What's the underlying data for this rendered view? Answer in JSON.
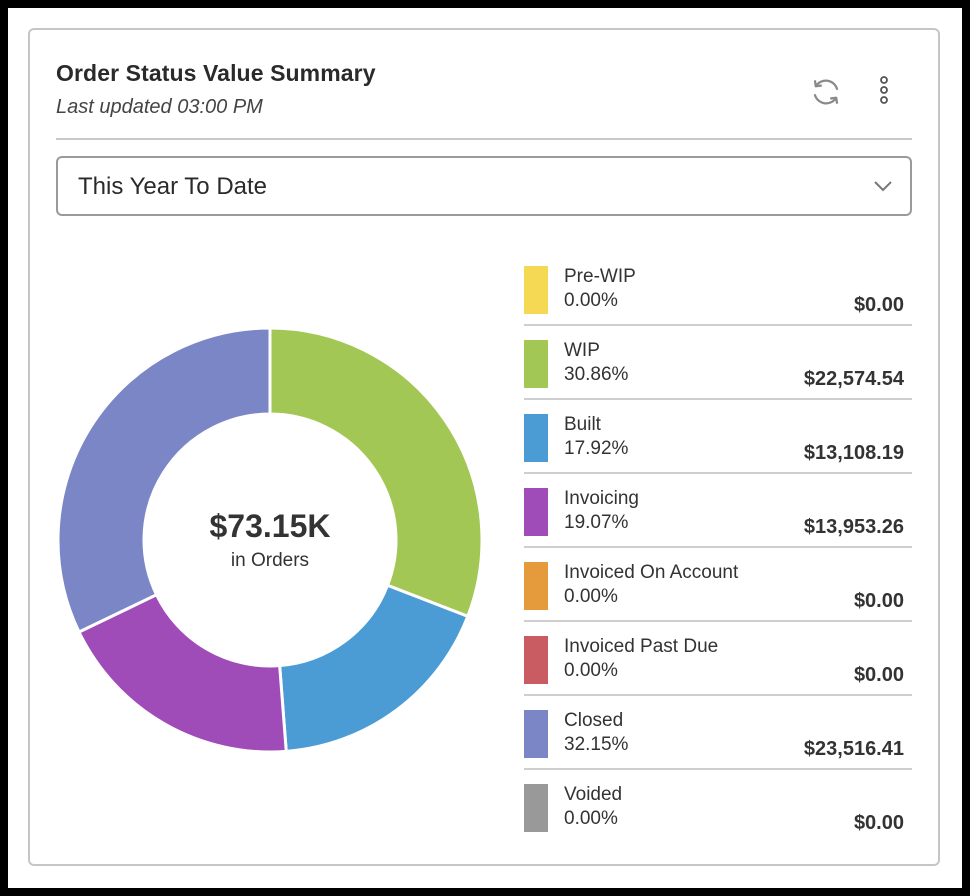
{
  "widget": {
    "title": "Order Status Value Summary",
    "last_updated": "Last updated 03:00 PM",
    "icons": {
      "refresh": "refresh-icon",
      "more": "more-vertical-icon",
      "chevron": "chevron-down-icon"
    }
  },
  "filter": {
    "selected": "This Year To Date"
  },
  "center": {
    "value": "$73.15K",
    "label": "in Orders"
  },
  "chart_data": {
    "type": "pie",
    "variant": "donut",
    "title": "Order Status Value Summary",
    "total_label": "$73.15K",
    "series": [
      {
        "name": "Pre-WIP",
        "percent": 0.0,
        "percent_label": "0.00%",
        "value": 0.0,
        "value_label": "$0.00",
        "color": "#f5d955"
      },
      {
        "name": "WIP",
        "percent": 30.86,
        "percent_label": "30.86%",
        "value": 22574.54,
        "value_label": "$22,574.54",
        "color": "#a2c754"
      },
      {
        "name": "Built",
        "percent": 17.92,
        "percent_label": "17.92%",
        "value": 13108.19,
        "value_label": "$13,108.19",
        "color": "#4b9bd4"
      },
      {
        "name": "Invoicing",
        "percent": 19.07,
        "percent_label": "19.07%",
        "value": 13953.26,
        "value_label": "$13,953.26",
        "color": "#9f4cb8"
      },
      {
        "name": "Invoiced On Account",
        "percent": 0.0,
        "percent_label": "0.00%",
        "value": 0.0,
        "value_label": "$0.00",
        "color": "#e59a3c"
      },
      {
        "name": "Invoiced Past Due",
        "percent": 0.0,
        "percent_label": "0.00%",
        "value": 0.0,
        "value_label": "$0.00",
        "color": "#c95c63"
      },
      {
        "name": "Closed",
        "percent": 32.15,
        "percent_label": "32.15%",
        "value": 23516.41,
        "value_label": "$23,516.41",
        "color": "#7b86c6"
      },
      {
        "name": "Voided",
        "percent": 0.0,
        "percent_label": "0.00%",
        "value": 0.0,
        "value_label": "$0.00",
        "color": "#999999"
      }
    ]
  }
}
